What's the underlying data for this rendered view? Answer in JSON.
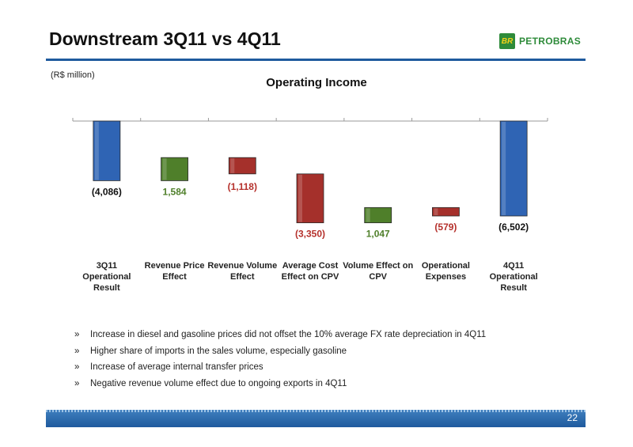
{
  "header": {
    "title": "Downstream 3Q11 vs 4Q11",
    "logo_text": "PETROBRAS",
    "logo_mark": "BR"
  },
  "unit_label": "(R$ million)",
  "chart_data": {
    "type": "bar",
    "subtype": "waterfall",
    "title": "Operating Income",
    "categories": [
      "3Q11\nOperational\nResult",
      "Revenue Price\nEffect",
      "Revenue Volume\nEffect",
      "Average Cost\nEffect on CPV",
      "Volume Effect on\nCPV",
      "Operational\nExpenses",
      "4Q11\nOperational\nResult"
    ],
    "values": [
      -4086,
      1584,
      -1118,
      -3350,
      1047,
      -579,
      -6502
    ],
    "value_labels": [
      "(4,086)",
      "1,584",
      "(1,118)",
      "(3,350)",
      "1,047",
      "(579)",
      "(6,502)"
    ],
    "kinds": [
      "total",
      "increase",
      "decrease",
      "decrease",
      "increase",
      "decrease",
      "total"
    ],
    "ylim": [
      -7000,
      0
    ],
    "colors": {
      "total": "#2f64b4",
      "increase": "#4f7f2a",
      "decrease": "#a5302b",
      "increase_label": "#4f7f2a",
      "decrease_label": "#b5302b",
      "total_label": "#111111"
    }
  },
  "bullets": {
    "marker": "»",
    "items": [
      "Increase in diesel and gasoline prices did not offset the 10% average FX rate depreciation in 4Q11",
      "Higher share of imports in the sales volume, especially gasoline",
      "Increase of average internal transfer prices",
      "Negative revenue volume effect due to ongoing exports in 4Q11"
    ]
  },
  "footer": {
    "page_number": "22"
  }
}
